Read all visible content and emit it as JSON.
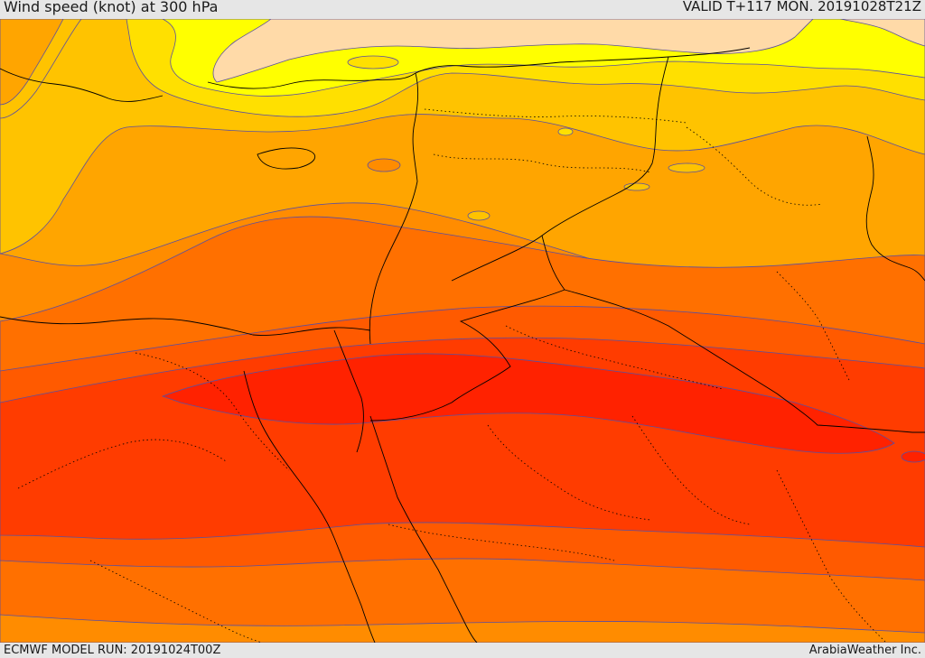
{
  "header": {
    "title": "Wind speed (knot) at 300 hPa",
    "valid": "VALID T+117 MON. 20191028T21Z"
  },
  "footer": {
    "model_run": "ECMWF MODEL RUN: 20191024T00Z",
    "credit": "ArabiaWeather Inc."
  },
  "colors": {
    "band_1": "#ffdaa8",
    "band_2": "#ffff00",
    "band_3": "#ffe000",
    "band_4": "#ffc300",
    "band_5": "#ffa500",
    "band_6": "#ff8c00",
    "band_7": "#ff7000",
    "band_8": "#ff5a00",
    "band_9": "#ff3c00",
    "band_10": "#ff2200",
    "contour": "#5a4fa0",
    "border": "#000000"
  }
}
